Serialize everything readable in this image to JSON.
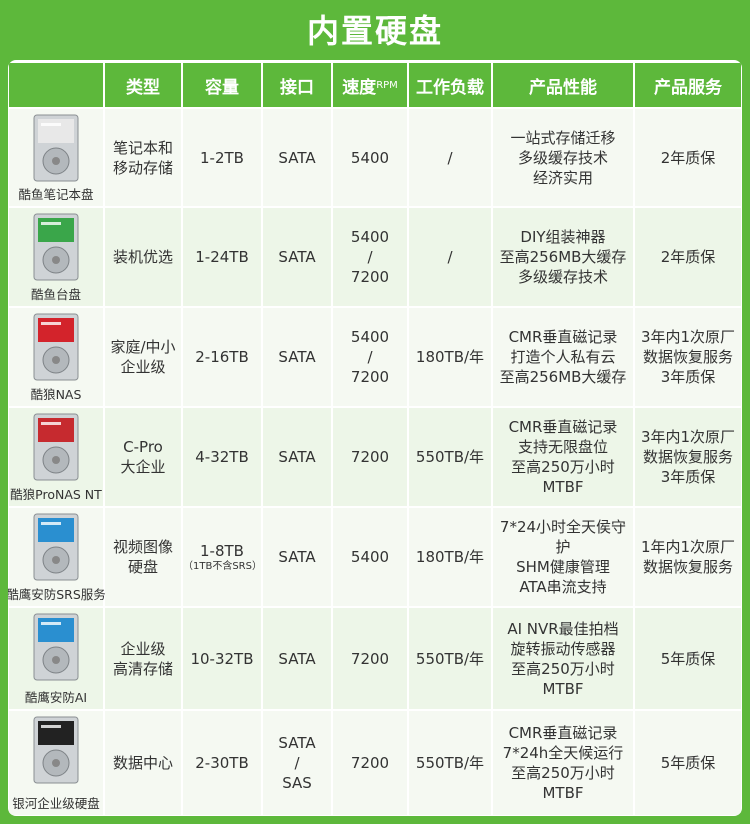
{
  "header": {
    "title": "内置硬盘"
  },
  "table": {
    "columns": [
      "",
      "类型",
      "容量",
      "接口",
      {
        "text": "速度",
        "unit": "RPM"
      },
      "工作负载",
      "产品性能",
      "产品服务"
    ],
    "rows": [
      {
        "name": "酷鱼笔记本盘",
        "type": [
          "笔记本和",
          "移动存储"
        ],
        "capacity": [
          "1-2TB"
        ],
        "interface": [
          "SATA"
        ],
        "speed": [
          "5400"
        ],
        "workload": [
          "/"
        ],
        "performance": [
          "一站式存储迁移",
          "多级缓存技术",
          "经济实用"
        ],
        "service": [
          "2年质保"
        ]
      },
      {
        "name": "酷鱼台盘",
        "type": [
          "装机优选"
        ],
        "capacity": [
          "1-24TB"
        ],
        "interface": [
          "SATA"
        ],
        "speed": [
          "5400",
          "/",
          "7200"
        ],
        "workload": [
          "/"
        ],
        "performance": [
          "DIY组装神器",
          "至高256MB大缓存",
          "多级缓存技术"
        ],
        "service": [
          "2年质保"
        ]
      },
      {
        "name": "酷狼NAS",
        "type": [
          "家庭/中小",
          "企业级"
        ],
        "capacity": [
          "2-16TB"
        ],
        "interface": [
          "SATA"
        ],
        "speed": [
          "5400",
          "/",
          "7200"
        ],
        "workload": [
          "180TB/年"
        ],
        "performance": [
          "CMR垂直磁记录",
          "打造个人私有云",
          "至高256MB大缓存"
        ],
        "service": [
          "3年内1次原厂",
          "数据恢复服务",
          "3年质保"
        ]
      },
      {
        "name": "酷狼ProNAS NT",
        "type": [
          "C-Pro",
          "大企业"
        ],
        "capacity": [
          "4-32TB"
        ],
        "interface": [
          "SATA"
        ],
        "speed": [
          "7200"
        ],
        "workload": [
          "550TB/年"
        ],
        "performance": [
          "CMR垂直磁记录",
          "支持无限盘位",
          "至高250万小时MTBF"
        ],
        "service": [
          "3年内1次原厂",
          "数据恢复服务",
          "3年质保"
        ]
      },
      {
        "name": "酷鹰安防SRS服务",
        "type": [
          "视频图像",
          "硬盘"
        ],
        "capacity": [
          "1-8TB"
        ],
        "capacity_note": "（1TB不含SRS）",
        "interface": [
          "SATA"
        ],
        "speed": [
          "5400"
        ],
        "workload": [
          "180TB/年"
        ],
        "performance": [
          "7*24小时全天侯守护",
          "SHM健康管理",
          "ATA串流支持"
        ],
        "service": [
          "1年内1次原厂",
          "数据恢复服务"
        ]
      },
      {
        "name": "酷鹰安防AI",
        "type": [
          "企业级",
          "高清存储"
        ],
        "capacity": [
          "10-32TB"
        ],
        "interface": [
          "SATA"
        ],
        "speed": [
          "7200"
        ],
        "workload": [
          "550TB/年"
        ],
        "performance": [
          "AI NVR最佳拍档",
          "旋转振动传感器",
          "至高250万小时MTBF"
        ],
        "service": [
          "5年质保"
        ]
      },
      {
        "name": "银河企业级硬盘",
        "type": [
          "数据中心"
        ],
        "capacity": [
          "2-30TB"
        ],
        "interface": [
          "SATA",
          "/",
          "SAS"
        ],
        "speed": [
          "7200"
        ],
        "workload": [
          "550TB/年"
        ],
        "performance": [
          "CMR垂直磁记录",
          "7*24h全天候运行",
          "至高250万小时MTBF"
        ],
        "service": [
          "5年质保"
        ]
      }
    ]
  }
}
